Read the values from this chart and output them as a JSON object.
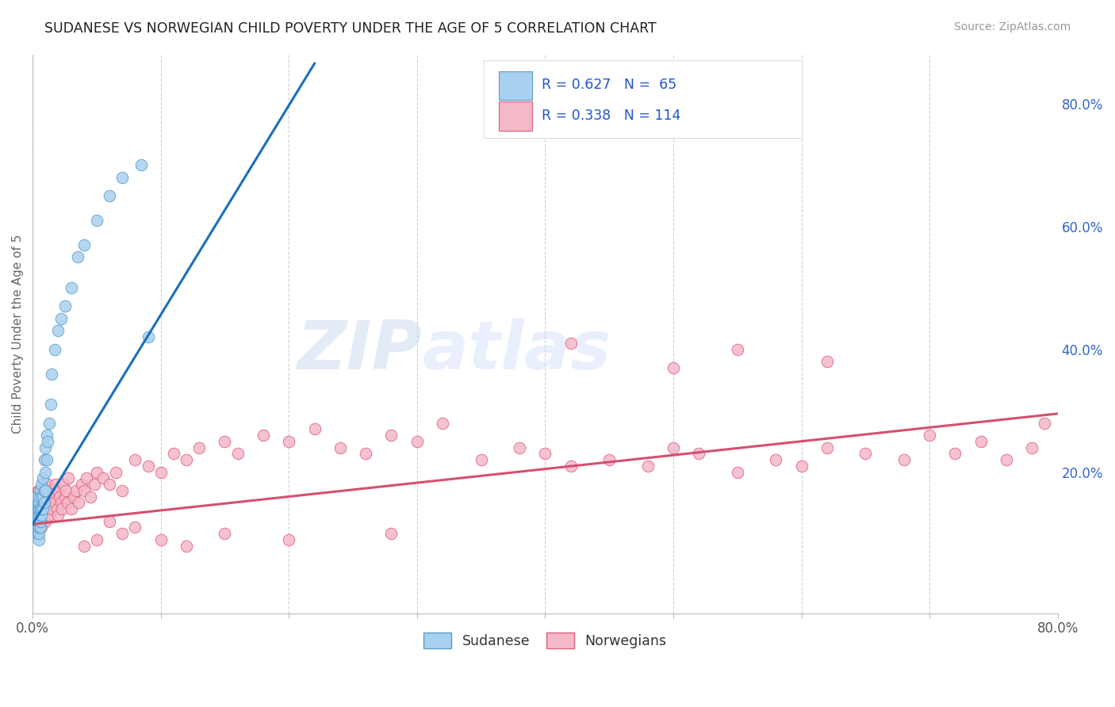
{
  "title": "SUDANESE VS NORWEGIAN CHILD POVERTY UNDER THE AGE OF 5 CORRELATION CHART",
  "source": "Source: ZipAtlas.com",
  "ylabel": "Child Poverty Under the Age of 5",
  "xlim": [
    0.0,
    0.8
  ],
  "ylim": [
    -0.03,
    0.88
  ],
  "sudanese_color": "#a8d0ef",
  "sudanese_edge": "#5b9dc9",
  "norwegian_color": "#f4b8c8",
  "norwegian_edge": "#e0607a",
  "trendline_sudanese": "#1a6fbd",
  "trendline_norwegian": "#d45070",
  "R_sudanese": 0.627,
  "N_sudanese": 65,
  "R_norwegian": 0.338,
  "N_norwegian": 114,
  "watermark_text": "ZIPatlas",
  "background_color": "#ffffff",
  "grid_color": "#cccccc",
  "title_fontsize": 12.5,
  "legend_text_color": "#2255cc",
  "legend_label_color": "#333333",
  "sud_trendline_x": [
    0.0,
    0.22
  ],
  "sud_trendline_y": [
    0.115,
    0.865
  ],
  "nor_trendline_x": [
    0.0,
    0.8
  ],
  "nor_trendline_y": [
    0.115,
    0.295
  ],
  "sud_x": [
    0.001,
    0.001,
    0.001,
    0.002,
    0.002,
    0.002,
    0.002,
    0.002,
    0.003,
    0.003,
    0.003,
    0.003,
    0.003,
    0.003,
    0.003,
    0.004,
    0.004,
    0.004,
    0.004,
    0.004,
    0.004,
    0.005,
    0.005,
    0.005,
    0.005,
    0.005,
    0.005,
    0.005,
    0.005,
    0.006,
    0.006,
    0.006,
    0.006,
    0.006,
    0.007,
    0.007,
    0.007,
    0.007,
    0.008,
    0.008,
    0.008,
    0.009,
    0.009,
    0.009,
    0.01,
    0.01,
    0.01,
    0.011,
    0.011,
    0.012,
    0.013,
    0.014,
    0.015,
    0.017,
    0.02,
    0.022,
    0.025,
    0.03,
    0.035,
    0.04,
    0.05,
    0.06,
    0.07,
    0.085,
    0.09
  ],
  "sud_y": [
    0.12,
    0.13,
    0.15,
    0.11,
    0.12,
    0.13,
    0.14,
    0.16,
    0.1,
    0.11,
    0.12,
    0.13,
    0.14,
    0.15,
    0.16,
    0.1,
    0.11,
    0.12,
    0.13,
    0.14,
    0.15,
    0.09,
    0.1,
    0.11,
    0.12,
    0.13,
    0.14,
    0.15,
    0.16,
    0.11,
    0.12,
    0.13,
    0.14,
    0.17,
    0.13,
    0.14,
    0.16,
    0.18,
    0.14,
    0.16,
    0.19,
    0.15,
    0.17,
    0.22,
    0.17,
    0.2,
    0.24,
    0.22,
    0.26,
    0.25,
    0.28,
    0.31,
    0.36,
    0.4,
    0.43,
    0.45,
    0.47,
    0.5,
    0.55,
    0.57,
    0.61,
    0.65,
    0.68,
    0.7,
    0.42
  ],
  "nor_x": [
    0.001,
    0.002,
    0.002,
    0.003,
    0.003,
    0.003,
    0.004,
    0.004,
    0.004,
    0.005,
    0.005,
    0.005,
    0.005,
    0.006,
    0.006,
    0.006,
    0.007,
    0.007,
    0.007,
    0.008,
    0.008,
    0.008,
    0.009,
    0.009,
    0.009,
    0.01,
    0.01,
    0.011,
    0.011,
    0.012,
    0.012,
    0.013,
    0.013,
    0.014,
    0.015,
    0.015,
    0.016,
    0.017,
    0.018,
    0.019,
    0.02,
    0.02,
    0.021,
    0.022,
    0.023,
    0.024,
    0.025,
    0.026,
    0.027,
    0.028,
    0.03,
    0.032,
    0.034,
    0.036,
    0.038,
    0.04,
    0.042,
    0.045,
    0.048,
    0.05,
    0.055,
    0.06,
    0.065,
    0.07,
    0.08,
    0.09,
    0.1,
    0.11,
    0.12,
    0.13,
    0.15,
    0.16,
    0.18,
    0.2,
    0.22,
    0.24,
    0.26,
    0.28,
    0.3,
    0.32,
    0.35,
    0.38,
    0.4,
    0.42,
    0.45,
    0.48,
    0.5,
    0.52,
    0.55,
    0.58,
    0.6,
    0.62,
    0.65,
    0.68,
    0.7,
    0.72,
    0.74,
    0.76,
    0.78,
    0.79,
    0.55,
    0.62,
    0.5,
    0.42,
    0.28,
    0.2,
    0.15,
    0.12,
    0.1,
    0.08,
    0.07,
    0.06,
    0.05,
    0.04
  ],
  "nor_y": [
    0.14,
    0.13,
    0.15,
    0.12,
    0.14,
    0.16,
    0.13,
    0.15,
    0.17,
    0.11,
    0.13,
    0.15,
    0.17,
    0.12,
    0.14,
    0.16,
    0.11,
    0.13,
    0.16,
    0.12,
    0.14,
    0.17,
    0.13,
    0.15,
    0.18,
    0.12,
    0.15,
    0.13,
    0.17,
    0.14,
    0.18,
    0.13,
    0.16,
    0.15,
    0.14,
    0.17,
    0.16,
    0.15,
    0.18,
    0.14,
    0.13,
    0.17,
    0.16,
    0.15,
    0.14,
    0.18,
    0.16,
    0.17,
    0.15,
    0.19,
    0.14,
    0.16,
    0.17,
    0.15,
    0.18,
    0.17,
    0.19,
    0.16,
    0.18,
    0.2,
    0.19,
    0.18,
    0.2,
    0.17,
    0.22,
    0.21,
    0.2,
    0.23,
    0.22,
    0.24,
    0.25,
    0.23,
    0.26,
    0.25,
    0.27,
    0.24,
    0.23,
    0.26,
    0.25,
    0.28,
    0.22,
    0.24,
    0.23,
    0.21,
    0.22,
    0.21,
    0.24,
    0.23,
    0.2,
    0.22,
    0.21,
    0.24,
    0.23,
    0.22,
    0.26,
    0.23,
    0.25,
    0.22,
    0.24,
    0.28,
    0.4,
    0.38,
    0.37,
    0.41,
    0.1,
    0.09,
    0.1,
    0.08,
    0.09,
    0.11,
    0.1,
    0.12,
    0.09,
    0.08
  ]
}
